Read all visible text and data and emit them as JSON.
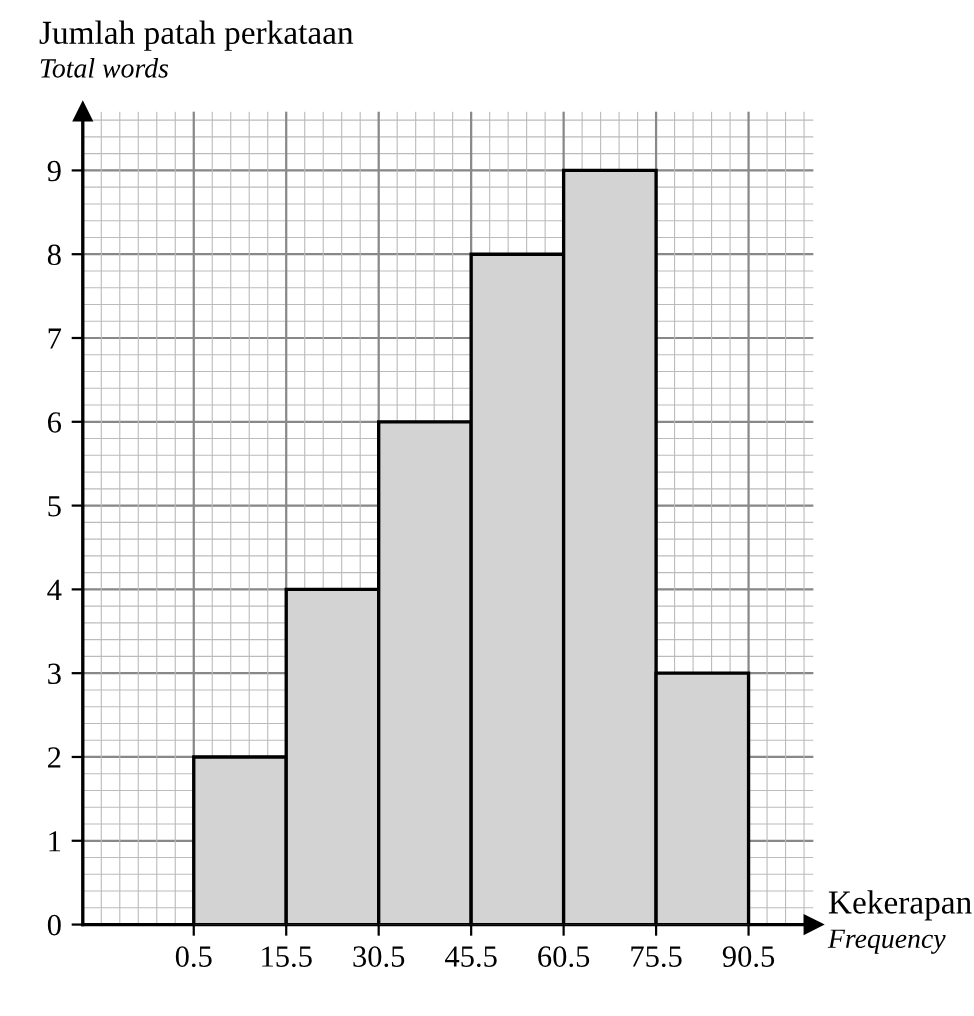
{
  "chart_data": {
    "type": "histogram",
    "ylabel": "Jumlah patah perkataan\nTotal words",
    "xlabel": "Kekerapan\nFrequency",
    "bins": [
      0.5,
      15.5,
      30.5,
      45.5,
      60.5,
      75.5,
      90.5
    ],
    "values": [
      2,
      4,
      6,
      8,
      9,
      3
    ],
    "color": "#d3d3d3",
    "xlim": [
      -17.5,
      101
    ],
    "ylim": [
      0,
      9.7
    ],
    "xticks": [
      0.5,
      15.5,
      30.5,
      45.5,
      60.5,
      75.5,
      90.5
    ],
    "yticks": [
      0,
      1,
      2,
      3,
      4,
      5,
      6,
      7,
      8,
      9
    ],
    "grid": true
  }
}
